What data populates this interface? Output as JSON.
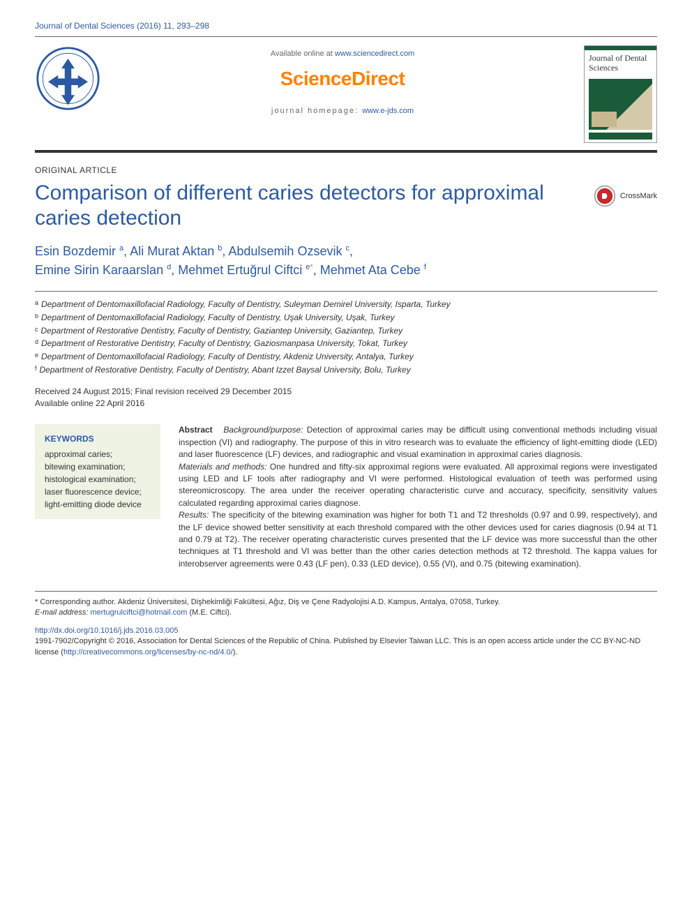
{
  "journal_ref": "Journal of Dental Sciences (2016) 11, 293–298",
  "header": {
    "available": "Available online at ",
    "available_link": "www.sciencedirect.com",
    "sd": "ScienceDirect",
    "homepage_label": "journal homepage: ",
    "homepage_link": "www.e-jds.com",
    "cover_title": "Journal of Dental Sciences"
  },
  "article_type": "ORIGINAL ARTICLE",
  "title": "Comparison of different caries detectors for approximal caries detection",
  "crossmark": "CrossMark",
  "authors": [
    {
      "name": "Esin Bozdemir",
      "sup": "a"
    },
    {
      "name": "Ali Murat Aktan",
      "sup": "b"
    },
    {
      "name": "Abdulsemih Ozsevik",
      "sup": "c"
    },
    {
      "name": "Emine Sirin Karaarslan",
      "sup": "d"
    },
    {
      "name": "Mehmet Ertuğrul Ciftci",
      "sup": "e",
      "corr": true
    },
    {
      "name": "Mehmet Ata Cebe",
      "sup": "f"
    }
  ],
  "affiliations": [
    {
      "sup": "a",
      "text": "Department of Dentomaxillofacial Radiology, Faculty of Dentistry, Suleyman Demirel University, Isparta, Turkey"
    },
    {
      "sup": "b",
      "text": "Department of Dentomaxillofacial Radiology, Faculty of Dentistry, Uşak University, Uşak, Turkey"
    },
    {
      "sup": "c",
      "text": "Department of Restorative Dentistry, Faculty of Dentistry, Gaziantep University, Gaziantep, Turkey"
    },
    {
      "sup": "d",
      "text": "Department of Restorative Dentistry, Faculty of Dentistry, Gaziosmanpasa University, Tokat, Turkey"
    },
    {
      "sup": "e",
      "text": "Department of Dentomaxillofacial Radiology, Faculty of Dentistry, Akdeniz University, Antalya, Turkey"
    },
    {
      "sup": "f",
      "text": "Department of Restorative Dentistry, Faculty of Dentistry, Abant Izzet Baysal University, Bolu, Turkey"
    }
  ],
  "dates": {
    "received": "Received 24 August 2015; Final revision received 29 December 2015",
    "online": "Available online 22 April 2016"
  },
  "keywords": {
    "head": "KEYWORDS",
    "items": [
      "approximal caries;",
      "bitewing examination;",
      "histological examination;",
      "laser fluorescence device;",
      "light-emitting diode device"
    ]
  },
  "abstract": {
    "label": "Abstract",
    "background_label": "Background/purpose:",
    "background": " Detection of approximal caries may be difficult using conventional methods including visual inspection (VI) and radiography. The purpose of this in vitro research was to evaluate the efficiency of light-emitting diode (LED) and laser fluorescence (LF) devices, and radiographic and visual examination in approximal caries diagnosis.",
    "methods_label": "Materials and methods:",
    "methods": " One hundred and fifty-six approximal regions were evaluated. All approximal regions were investigated using LED and LF tools after radiography and VI were performed. Histological evaluation of teeth was performed using stereomicroscopy. The area under the receiver operating characteristic curve and accuracy, specificity, sensitivity values calculated regarding approximal caries diagnose.",
    "results_label": "Results:",
    "results": " The specificity of the bitewing examination was higher for both T1 and T2 thresholds (0.97 and 0.99, respectively), and the LF device showed better sensitivity at each threshold compared with the other devices used for caries diagnosis (0.94 at T1 and 0.79 at T2). The receiver operating characteristic curves presented that the LF device was more successful than the other techniques at T1 threshold and VI was better than the other caries detection methods at T2 threshold. The kappa values for interobserver agreements were 0.43 (LF pen), 0.33 (LED device), 0.55 (VI), and 0.75 (bitewing examination)."
  },
  "footer": {
    "corr": "* Corresponding author. Akdeniz Üniversitesi, Dişhekimliği Fakültesi, Ağız, Diş ve Çene Radyolojisi A.D. Kampus, Antalya, 07058, Turkey.",
    "email_label": "E-mail address:",
    "email": "mertugrulciftci@hotmail.com",
    "email_author": "(M.E. Ciftci).",
    "doi": "http://dx.doi.org/10.1016/j.jds.2016.03.005",
    "copyright": "1991-7902/Copyright © 2016, Association for Dental Sciences of the Republic of China. Published by Elsevier Taiwan LLC. This is an open access article under the CC BY-NC-ND license (",
    "license_link": "http://creativecommons.org/licenses/by-nc-nd/4.0/",
    "copyright_end": ")."
  },
  "colors": {
    "link": "#2c5aa0",
    "accent": "#ff8200",
    "rule": "#333333",
    "kw_bg": "#eef3e4",
    "cover_green": "#1a5c3a"
  }
}
